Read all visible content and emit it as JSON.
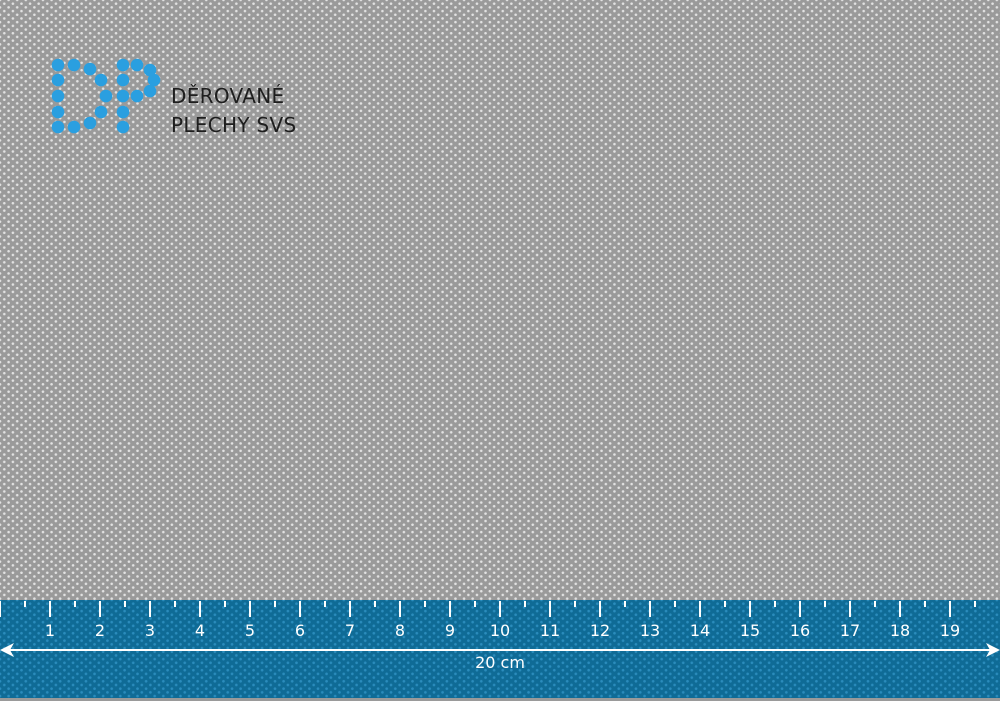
{
  "brand": {
    "logo_letters": "DP",
    "line1": "DĚROVANÉ",
    "line2": "PLECHY SVS",
    "logo_color": "#2a9fe0"
  },
  "ruler": {
    "labels": [
      "1",
      "2",
      "3",
      "4",
      "5",
      "6",
      "7",
      "8",
      "9",
      "10",
      "11",
      "12",
      "13",
      "14",
      "15",
      "16",
      "17",
      "18",
      "19"
    ],
    "total_label": "20 cm",
    "band_color": "#0f6b96"
  }
}
